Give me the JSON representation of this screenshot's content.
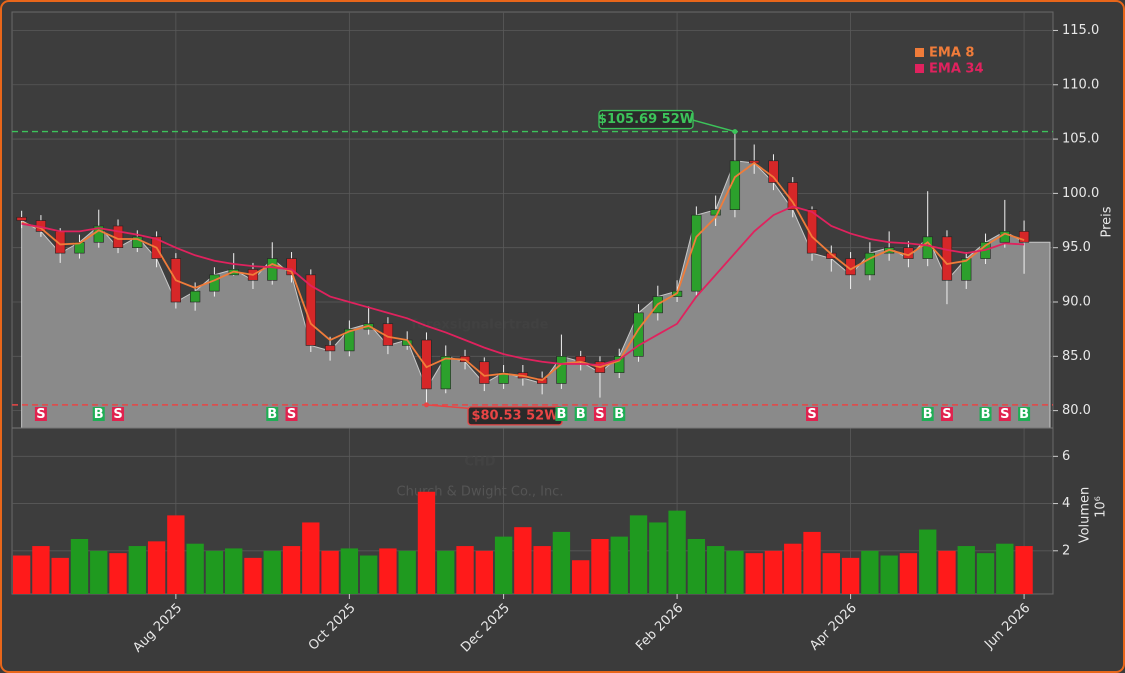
{
  "chart_data": {
    "type": "candlestick",
    "watermark": "forexsignalertrade",
    "ticker": "CHD",
    "company": "Church & Dwight Co., Inc.",
    "ylabel": "Preis",
    "categories": [
      null,
      null,
      null,
      null,
      null,
      null,
      null,
      null,
      "Aug 2025",
      null,
      null,
      null,
      null,
      null,
      null,
      null,
      null,
      "Oct 2025",
      null,
      null,
      null,
      null,
      null,
      null,
      null,
      "Dec 2025",
      null,
      null,
      null,
      null,
      null,
      null,
      null,
      null,
      "Feb 2026",
      null,
      null,
      null,
      null,
      null,
      null,
      null,
      null,
      "Apr 2026",
      null,
      null,
      null,
      null,
      null,
      null,
      null,
      null,
      "Jun 2026"
    ],
    "open": [
      97.8,
      97.5,
      96.5,
      94.5,
      95.5,
      97,
      95,
      96,
      94,
      90,
      91,
      92.5,
      93,
      92,
      94,
      92.5,
      86,
      85.5,
      87.5,
      88,
      86,
      86.5,
      82,
      85,
      84.5,
      82.5,
      83.5,
      83,
      82.5,
      85,
      84.5,
      83.5,
      85,
      89,
      90.5,
      91,
      98,
      98.5,
      103,
      103,
      101,
      98.5,
      94.5,
      94,
      92.5,
      94.5,
      95,
      94,
      96,
      92,
      94,
      95.5,
      96.5
    ],
    "high": [
      98.4,
      98,
      96.8,
      96.2,
      98.5,
      97.6,
      96.6,
      96.5,
      94.5,
      91.8,
      93.2,
      94.5,
      93.6,
      95.5,
      94.6,
      93,
      86.8,
      88.3,
      89.6,
      88.6,
      87.3,
      87.2,
      86,
      85.6,
      84.9,
      84.2,
      84.2,
      83.6,
      87,
      85.5,
      85,
      85.7,
      89.8,
      91.5,
      92,
      98.8,
      99.8,
      105.69,
      104.5,
      103.6,
      101.5,
      98.8,
      95.2,
      94.6,
      95.5,
      96.5,
      95.6,
      100.2,
      96.6,
      94.6,
      96.3,
      99.4,
      97.5
    ],
    "low": [
      96.8,
      96,
      93.6,
      94,
      95,
      94.5,
      94.6,
      93.2,
      89.4,
      89.2,
      90.5,
      92.4,
      91.2,
      91.6,
      91.8,
      85.4,
      84.6,
      85,
      87,
      85.2,
      85.6,
      80.53,
      81.6,
      83.8,
      81.8,
      82,
      82.3,
      81.5,
      82,
      83.7,
      81.2,
      83,
      84.5,
      88.3,
      90,
      90.6,
      97,
      97.8,
      101.8,
      100.3,
      97.8,
      93.8,
      92.8,
      91.2,
      92,
      93.8,
      93.2,
      93.3,
      89.8,
      91.2,
      93.5,
      95,
      92.6
    ],
    "close": [
      97.5,
      96.5,
      94.5,
      95.5,
      97,
      95,
      96,
      94,
      90,
      91,
      92.5,
      93,
      92,
      94,
      92.5,
      86,
      85.5,
      87.5,
      88,
      86,
      86.5,
      82,
      85,
      84.5,
      82.5,
      83.5,
      83,
      82.5,
      85,
      84.5,
      83.5,
      85,
      89,
      90.5,
      91,
      98,
      98.5,
      103,
      102.8,
      101,
      98.5,
      94.5,
      94,
      92.5,
      94.5,
      95,
      94,
      96,
      92,
      94,
      95.5,
      96.5,
      95.5
    ],
    "up_color": "#2ca02c",
    "down_color": "#d62728",
    "area_color": "#8a8a8a",
    "series": [
      {
        "name": "EMA 8",
        "color": "#f07c3a",
        "values": [
          97.3,
          96.8,
          95.3,
          95.4,
          96.6,
          95.8,
          95.8,
          95,
          92,
          91.3,
          92,
          92.8,
          92.5,
          93.5,
          92.8,
          88,
          86.5,
          87.3,
          87.8,
          86.8,
          86.5,
          84,
          84.8,
          84.7,
          83.2,
          83.4,
          83.2,
          82.8,
          84.3,
          84.5,
          84,
          84.6,
          87.5,
          89.8,
          90.8,
          96,
          97.8,
          101.5,
          102.8,
          101.5,
          99.2,
          96,
          94.4,
          93,
          94,
          94.8,
          94.3,
          95.5,
          93.5,
          93.8,
          95.2,
          96.3,
          95.7
        ]
      },
      {
        "name": "EMA 34",
        "color": "#e0225e",
        "values": [
          97.2,
          96.9,
          96.5,
          96.5,
          96.8,
          96.5,
          96.2,
          95.8,
          95,
          94.3,
          93.8,
          93.5,
          93.3,
          93.2,
          93,
          91.5,
          90.5,
          90,
          89.5,
          89,
          88.5,
          87.8,
          87.2,
          86.5,
          85.8,
          85.2,
          84.8,
          84.5,
          84.3,
          84.3,
          84.2,
          84.7,
          86,
          87,
          88,
          90.5,
          92.5,
          94.5,
          96.5,
          98,
          98.8,
          98.3,
          97,
          96.3,
          95.8,
          95.5,
          95.4,
          95.2,
          94.8,
          94.5,
          94.8,
          95.4,
          95.3
        ]
      }
    ],
    "ylim": [
      78.4,
      116.7
    ],
    "yticks": [
      {
        "value": 80,
        "label": "80.0"
      },
      {
        "value": 85,
        "label": "85.0"
      },
      {
        "value": 90,
        "label": "90.0"
      },
      {
        "value": 95,
        "label": "95.0"
      },
      {
        "value": 100,
        "label": "100.0"
      },
      {
        "value": 105,
        "label": "105.0"
      },
      {
        "value": 110,
        "label": "110.0"
      },
      {
        "value": 115,
        "label": "115.0"
      }
    ],
    "grid": true,
    "annotations": [
      {
        "text": "$105.69 52W",
        "value": 105.69,
        "color": "#3cc35a"
      },
      {
        "text": "$80.53 52W",
        "value": 80.53,
        "color": "#e84545"
      }
    ],
    "signals": [
      null,
      "S",
      null,
      null,
      "B",
      "S",
      null,
      null,
      null,
      null,
      null,
      null,
      null,
      "B",
      "S",
      null,
      null,
      null,
      null,
      null,
      null,
      null,
      null,
      null,
      null,
      null,
      null,
      null,
      "B",
      "B",
      "S",
      "B",
      null,
      null,
      null,
      null,
      null,
      null,
      null,
      null,
      null,
      "S",
      null,
      null,
      null,
      null,
      null,
      "B",
      "S",
      null,
      "B",
      "S",
      "B"
    ],
    "volume": {
      "label": "Volumen",
      "exponent": "10⁶",
      "values": [
        1.8,
        2.2,
        1.7,
        2.5,
        2.0,
        1.9,
        2.2,
        2.4,
        3.5,
        2.3,
        2.0,
        2.1,
        1.7,
        2.0,
        2.2,
        3.2,
        2.0,
        2.1,
        1.8,
        2.1,
        2.0,
        4.5,
        2.0,
        2.2,
        2.0,
        2.6,
        3.0,
        2.2,
        2.8,
        1.6,
        2.5,
        2.6,
        3.5,
        3.2,
        3.7,
        2.5,
        2.2,
        2.0,
        1.9,
        2.0,
        2.3,
        2.8,
        1.9,
        1.7,
        2.0,
        1.8,
        1.9,
        2.9,
        2.0,
        2.2,
        1.9,
        2.3,
        2.2
      ],
      "up_color": "#1f9a1f",
      "down_color": "#ff1a1a",
      "ylim": [
        0.17,
        7.2
      ],
      "yticks": [
        2,
        4,
        6
      ]
    }
  }
}
